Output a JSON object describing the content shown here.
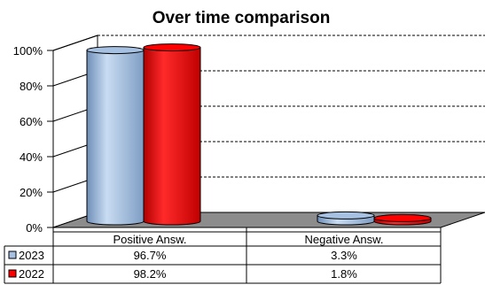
{
  "chart_data": {
    "type": "bar",
    "title": "Over time comparison",
    "categories": [
      "Positive Answ.",
      "Negative Answ."
    ],
    "series": [
      {
        "name": "2023",
        "values": [
          96.7,
          3.3
        ],
        "labels": [
          "96.7%",
          "3.3%"
        ],
        "color": "#a7c1e2"
      },
      {
        "name": "2022",
        "values": [
          98.2,
          1.8
        ],
        "labels": [
          "98.2%",
          "1.8%"
        ],
        "color": "#ff0000"
      }
    ],
    "ylim": [
      0,
      100
    ],
    "y_ticks": [
      "0%",
      "20%",
      "40%",
      "60%",
      "80%",
      "100%"
    ],
    "grid": "dashed horizontal",
    "legend": "data table below chart",
    "style": "3d-cylinder"
  }
}
